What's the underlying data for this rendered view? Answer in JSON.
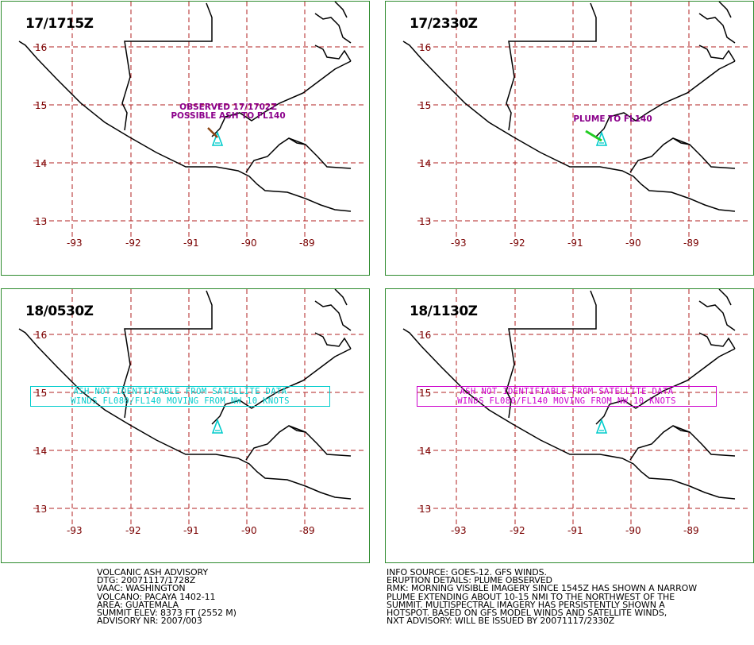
{
  "panels": [
    {
      "time": "17/1715Z",
      "annotation": [
        "OBSERVED 17/1702Z",
        "POSSIBLE ASH TO FL140"
      ],
      "plume_color": "#8b4513",
      "has_plume": true
    },
    {
      "time": "17/2330Z",
      "annotation": [
        "PLUME TO FL140"
      ],
      "plume_color": "#22cc22",
      "has_plume": true
    },
    {
      "time": "18/0530Z",
      "box_lines": [
        "ASH NOT IDENTIFIABLE FROM SATELLITE DATA",
        "WINDS FL080/FL140 MOVING FROM NW 10 KNOTS"
      ],
      "box_color": "#00cccc"
    },
    {
      "time": "18/1130Z",
      "box_lines": [
        "ASH NOT IDENTIFIABLE FROM SATELLITE DATA",
        "WINDS FL080/FL140 MOVING FROM NW 10 KNOTS"
      ],
      "box_color": "#cc00cc"
    }
  ],
  "lat_labels": [
    "16",
    "15",
    "14",
    "13"
  ],
  "lon_labels": [
    "-93",
    "-92",
    "-91",
    "-90",
    "-89"
  ],
  "volcano_color": "#00cccc",
  "grid_color": "#b22222",
  "border_color": "#2e8b2e",
  "footer_left": [
    "VOLCANIC ASH ADVISORY",
    "DTG: 20071117/1728Z",
    "VAAC: WASHINGTON",
    "VOLCANO: PACAYA 1402-11",
    "AREA: GUATEMALA",
    "SUMMIT ELEV: 8373 FT (2552 M)",
    "ADVISORY NR: 2007/003"
  ],
  "footer_right": [
    "INFO SOURCE: GOES-12. GFS WINDS.",
    "ERUPTION DETAILS: PLUME OBSERVED",
    "RMK: MORNING VISIBLE IMAGERY SINCE 1545Z HAS SHOWN A NARROW",
    "PLUME EXTENDING ABOUT 10-15 NMI TO THE NORTHWEST OF THE",
    "SUMMIT. MULTISPECTRAL IMAGERY HAS PERSISTENTLY SHOWN A",
    "HOTSPOT. BASED ON GFS MODEL WINDS AND SATELLITE WINDS,",
    "NXT ADVISORY: WILL BE ISSUED BY 20071117/2330Z"
  ]
}
